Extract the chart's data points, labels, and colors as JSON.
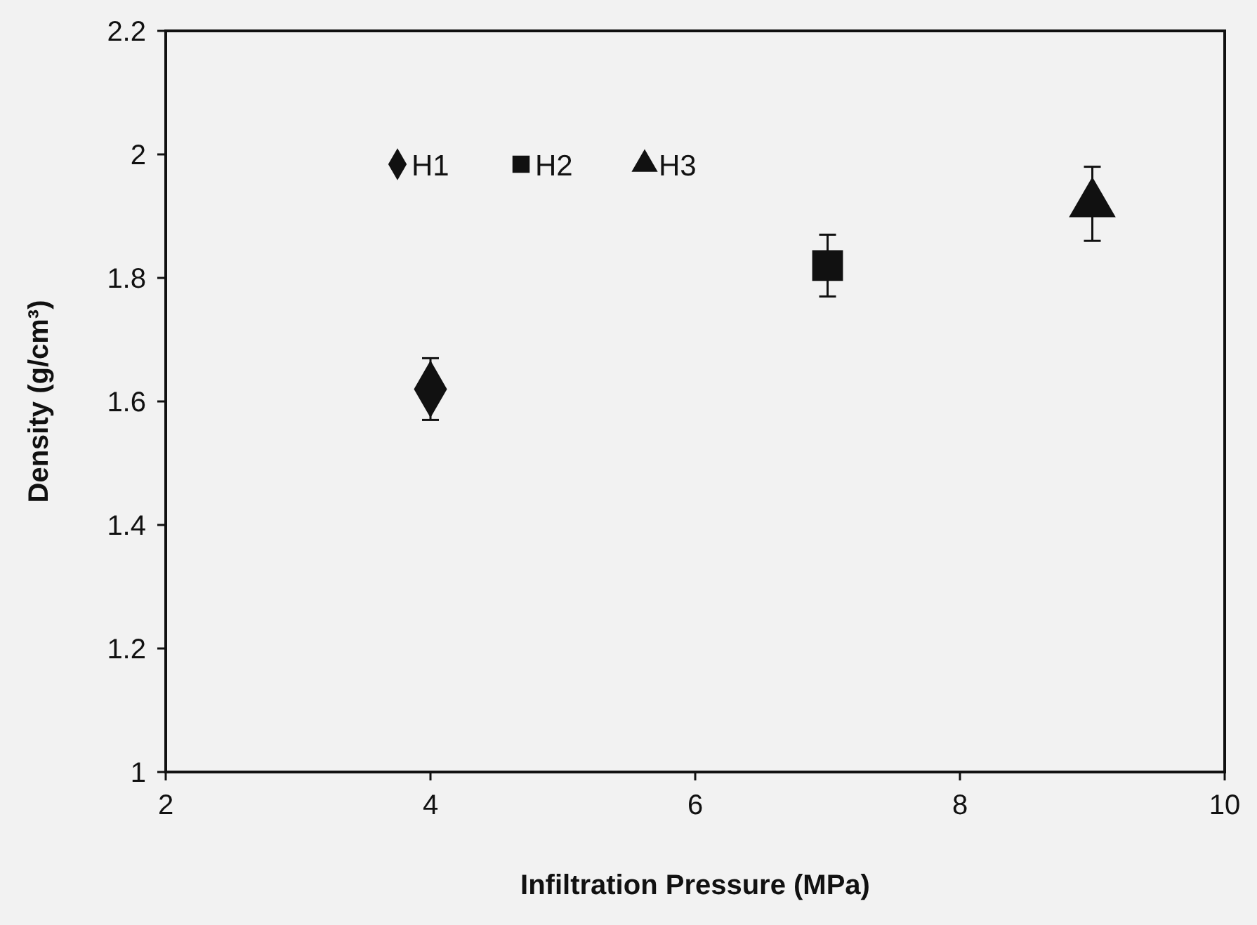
{
  "chart_data": {
    "type": "scatter",
    "xlabel": "Infiltration Pressure (MPa)",
    "ylabel": "Density (g/cm³)",
    "xlim": [
      2,
      10
    ],
    "xticks": [
      2,
      4,
      6,
      8,
      10
    ],
    "ylim": [
      1,
      2.2
    ],
    "yticks": [
      1,
      1.2,
      1.4,
      1.6,
      1.8,
      2,
      2.2
    ],
    "grid": false,
    "legend": "top left",
    "series": [
      {
        "name": "H1",
        "color": "#111111",
        "marker": "diamond",
        "x": [
          4
        ],
        "values": [
          1.62
        ],
        "errors": [
          0.05
        ]
      },
      {
        "name": "H2",
        "color": "#111111",
        "marker": "square",
        "x": [
          7
        ],
        "values": [
          1.82
        ],
        "errors": [
          0.05
        ]
      },
      {
        "name": "H3",
        "color": "#111111",
        "marker": "triangle",
        "x": [
          9
        ],
        "values": [
          1.92
        ],
        "errors": [
          0.06
        ]
      }
    ]
  }
}
